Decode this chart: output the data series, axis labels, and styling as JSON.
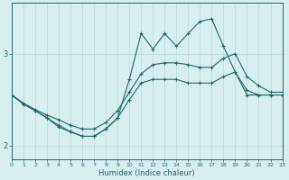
{
  "xlabel": "Humidex (Indice chaleur)",
  "background_color": "#d8edee",
  "grid_color": "#b8d8d8",
  "line_color": "#1e6b6b",
  "x": [
    0,
    1,
    2,
    3,
    4,
    5,
    6,
    7,
    8,
    9,
    10,
    11,
    12,
    13,
    14,
    15,
    16,
    17,
    18,
    19,
    20,
    21,
    22,
    23
  ],
  "y_line1": [
    2.55,
    2.45,
    2.38,
    2.3,
    2.22,
    2.15,
    2.1,
    2.1,
    2.18,
    2.3,
    2.5,
    2.68,
    2.72,
    2.72,
    2.72,
    2.68,
    2.68,
    2.68,
    2.75,
    2.8,
    2.6,
    2.55,
    2.55,
    2.55
  ],
  "y_line2": [
    2.55,
    2.46,
    2.39,
    2.33,
    2.28,
    2.22,
    2.18,
    2.18,
    2.25,
    2.38,
    2.58,
    2.78,
    2.88,
    2.9,
    2.9,
    2.88,
    2.85,
    2.85,
    2.95,
    3.0,
    2.75,
    2.65,
    2.58,
    2.58
  ],
  "y_line3": [
    2.55,
    2.45,
    2.38,
    2.3,
    2.2,
    2.15,
    2.1,
    2.1,
    2.18,
    2.3,
    2.72,
    3.22,
    3.05,
    3.22,
    3.08,
    3.22,
    3.35,
    3.38,
    3.08,
    2.8,
    2.55,
    2.55,
    2.55,
    2.55
  ],
  "ylim": [
    1.85,
    3.55
  ],
  "yticks": [
    2.0,
    3.0
  ],
  "xlim": [
    0,
    23
  ],
  "figsize": [
    3.2,
    2.0
  ],
  "dpi": 100
}
